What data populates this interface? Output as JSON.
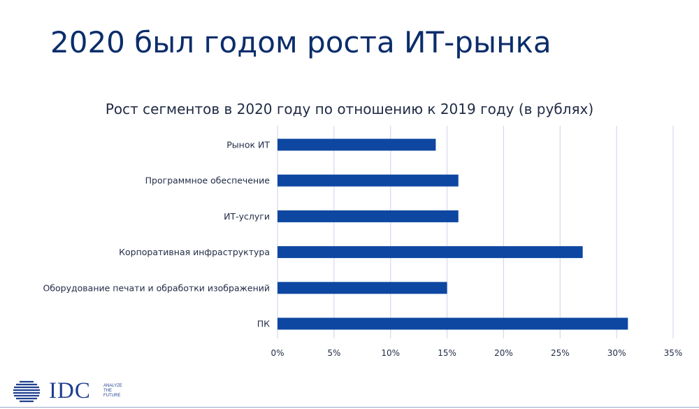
{
  "slide": {
    "title": "2020 был годом роста ИТ-рынка"
  },
  "logo": {
    "name": "IDC",
    "tagline": [
      "ANALYZE",
      "THE",
      "FUTURE"
    ]
  },
  "colors": {
    "bar": "#0d47a1",
    "grid": "#d5d8ec",
    "text": "#1f2a44"
  },
  "chart_data": {
    "type": "bar",
    "orientation": "horizontal",
    "title": "Рост сегментов в 2020 году по отношению к 2019 году (в рублях)",
    "categories": [
      "Рынок ИТ",
      "Программное обеспечение",
      "ИТ-услуги",
      "Корпоративная инфраструктура",
      "Оборудование печати и обработки изображений",
      "ПК"
    ],
    "values": [
      14,
      16,
      16,
      27,
      15,
      31
    ],
    "unit": "%",
    "xlim": [
      0,
      35
    ],
    "xticks": [
      0,
      5,
      10,
      15,
      20,
      25,
      30,
      35
    ],
    "xtick_labels": [
      "0%",
      "5%",
      "10%",
      "15%",
      "20%",
      "25%",
      "30%",
      "35%"
    ],
    "grid": true,
    "legend": "none"
  }
}
